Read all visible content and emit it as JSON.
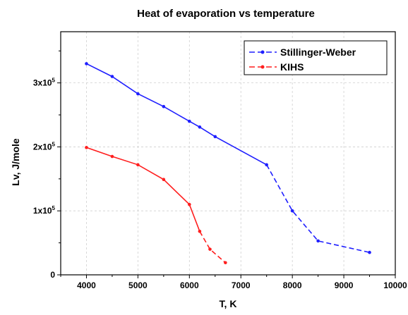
{
  "chart_data": {
    "type": "line",
    "title": "Heat of evaporation vs temperature",
    "xlabel": "T, K",
    "ylabel": "Lv, J/mole",
    "xlim": [
      3500,
      10000
    ],
    "ylim": [
      0,
      380000
    ],
    "x_ticks": [
      4000,
      5000,
      6000,
      7000,
      8000,
      9000,
      10000
    ],
    "y_ticks": [
      0,
      100000,
      200000,
      300000
    ],
    "y_tick_labels": [
      {
        "base": "0",
        "exp": ""
      },
      {
        "base": "1x10",
        "exp": "5"
      },
      {
        "base": "2x10",
        "exp": "5"
      },
      {
        "base": "3x10",
        "exp": "5"
      }
    ],
    "grid": true,
    "legend_position": "top-right",
    "series": [
      {
        "name": "Stillinger-Weber",
        "color": "#1f1fff",
        "solid": [
          [
            4000,
            330000
          ],
          [
            4500,
            310000
          ],
          [
            5000,
            283000
          ],
          [
            5500,
            263000
          ],
          [
            6000,
            240000
          ],
          [
            6200,
            231000
          ],
          [
            6500,
            216000
          ],
          [
            7500,
            172000
          ]
        ],
        "dashed": [
          [
            7500,
            172000
          ],
          [
            8000,
            100000
          ],
          [
            8500,
            53000
          ],
          [
            9500,
            35000
          ]
        ]
      },
      {
        "name": "KIHS",
        "color": "#ff1f1f",
        "solid": [
          [
            4000,
            199000
          ],
          [
            4500,
            185000
          ],
          [
            5000,
            172000
          ],
          [
            5500,
            149000
          ],
          [
            6000,
            110000
          ],
          [
            6200,
            68000
          ]
        ],
        "dashed": [
          [
            6200,
            68000
          ],
          [
            6400,
            40000
          ],
          [
            6700,
            19000
          ]
        ]
      }
    ]
  }
}
